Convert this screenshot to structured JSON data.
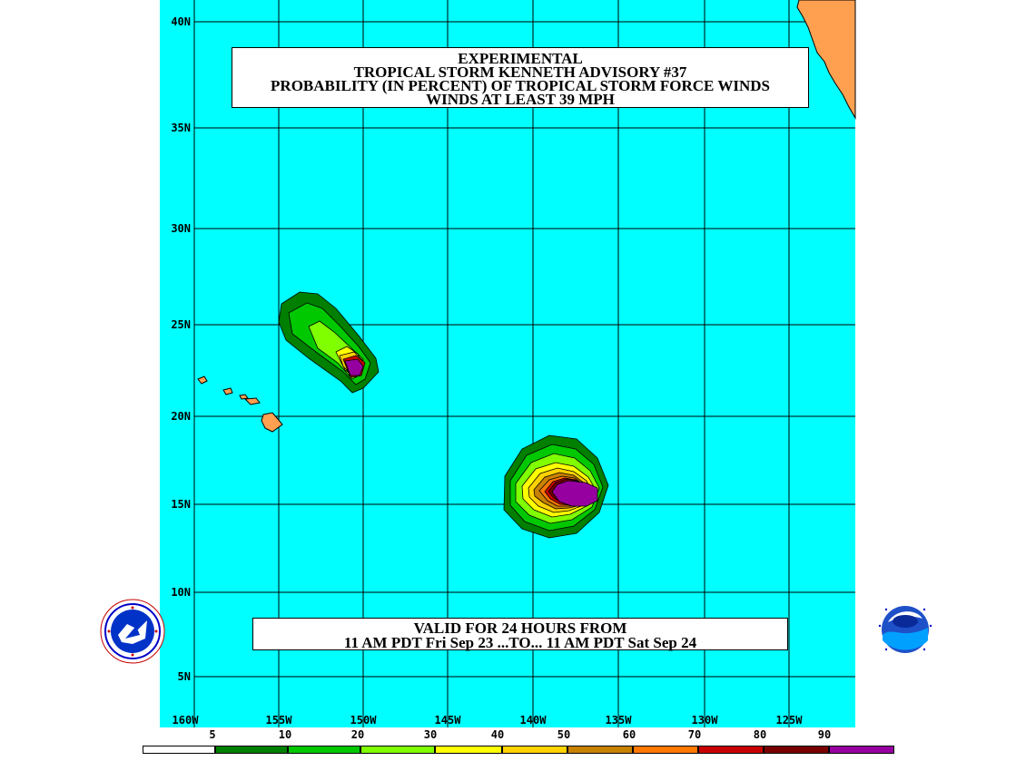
{
  "title": {
    "line1": "EXPERIMENTAL",
    "line2": "TROPICAL STORM KENNETH ADVISORY #37",
    "line3": "PROBABILITY (IN PERCENT) OF TROPICAL STORM FORCE WINDS",
    "line4": "WINDS AT LEAST 39 MPH"
  },
  "valid": {
    "line1": "VALID FOR 24 HOURS FROM",
    "line2": "11 AM PDT Fri Sep 23 ...TO... 11 AM PDT Sat Sep 24"
  },
  "lat_labels": [
    "40N",
    "35N",
    "30N",
    "25N",
    "20N",
    "15N",
    "10N",
    "5N"
  ],
  "lon_labels": [
    "160W",
    "155W",
    "150W",
    "145W",
    "140W",
    "135W",
    "130W",
    "125W"
  ],
  "legend": {
    "labels": [
      "5",
      "10",
      "20",
      "30",
      "40",
      "50",
      "60",
      "70",
      "80",
      "90"
    ],
    "colors": [
      "#ffffff",
      "#007f00",
      "#00c800",
      "#7fff00",
      "#ffff00",
      "#ffd200",
      "#c88200",
      "#ff7800",
      "#c80000",
      "#780000",
      "#9600a0"
    ]
  },
  "colors": {
    "ocean": "#00ffff",
    "land": "#ffa050",
    "grid": "#000000"
  },
  "logos": {
    "left": "nws-logo",
    "right": "noaa-logo"
  }
}
